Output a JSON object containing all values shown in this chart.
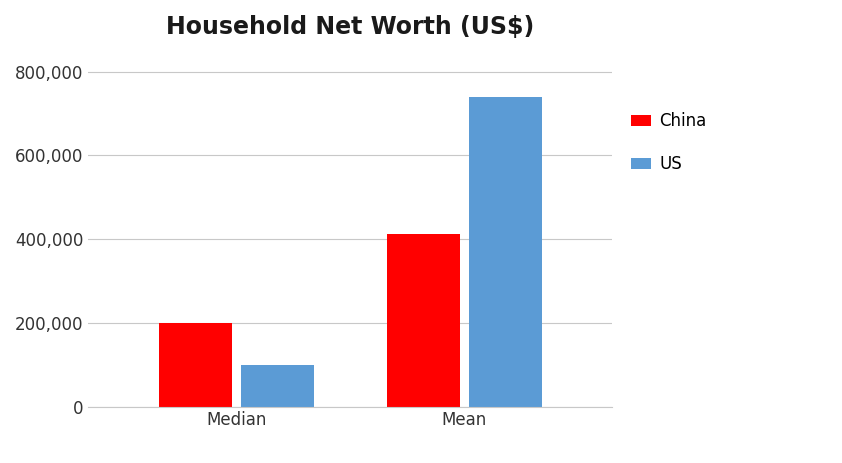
{
  "title": "Household Net Worth (US$)",
  "title_fontsize": 17,
  "title_fontweight": "bold",
  "categories": [
    "Median",
    "Mean"
  ],
  "series": [
    {
      "label": "China",
      "values": [
        200000,
        412000
      ],
      "color": "#FF0000"
    },
    {
      "label": "US",
      "values": [
        100000,
        740000
      ],
      "color": "#5B9BD5"
    }
  ],
  "ylim": [
    0,
    850000
  ],
  "yticks": [
    0,
    200000,
    400000,
    600000,
    800000
  ],
  "footnote_fontsize": 10,
  "bar_width": 0.32,
  "legend_fontsize": 12,
  "tick_fontsize": 12,
  "background_color": "#FFFFFF",
  "grid_color": "#C8C8C8",
  "grid_linewidth": 0.8,
  "bar_gap": 0.04
}
